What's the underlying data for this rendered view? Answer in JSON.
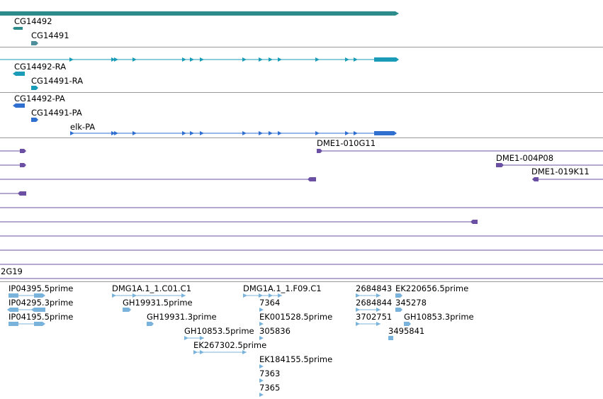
{
  "colors": {
    "gene": "#2e8b8b",
    "transcript": "#1a9bb8",
    "protein": "#2f6fd0",
    "clone": "#6a4fa3",
    "est": "#79b3dc",
    "separator": "#999999"
  },
  "tracks": {
    "genes": {
      "labels": [
        "CG14492",
        "CG14491"
      ]
    },
    "transcripts": {
      "labels": [
        "CG14492-RA",
        "CG14491-RA"
      ]
    },
    "proteins": {
      "labels": [
        "CG14492-PA",
        "CG14491-PA",
        "elk-PA"
      ]
    },
    "clones": {
      "labels": [
        "DME1-010G11",
        "DME1-004P08",
        "DME1-019K11"
      ]
    },
    "partial_label": "2G19",
    "ests": {
      "labels": [
        "IP04395.5prime",
        "IP04295.3prime",
        "IP04195.5prime",
        "DMG1A.1_1.C01.C1",
        "GH19931.5prime",
        "GH19931.3prime",
        "GH10853.5prime",
        "EK267302.5prime",
        "DMG1A.1_1.F09.C1",
        "7364",
        "EK001528.5prime",
        "305836",
        "EK184155.5prime",
        "7363",
        "7365",
        "2684843",
        "EK220656.5prime",
        "2684844",
        "345278",
        "3702751",
        "GH10853.3prime",
        "3495841"
      ]
    }
  }
}
